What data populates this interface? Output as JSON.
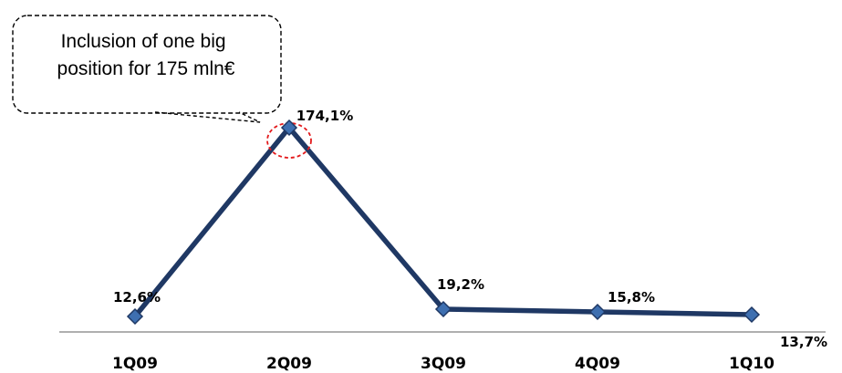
{
  "chart_data": {
    "type": "line",
    "categories": [
      "1Q09",
      "2Q09",
      "3Q09",
      "4Q09",
      "1Q10"
    ],
    "values": [
      12.6,
      174.1,
      19.2,
      15.8,
      13.7
    ],
    "data_labels": [
      "12,6%",
      "174,1%",
      "19,2%",
      "15,8%",
      "13,7%"
    ],
    "title": "",
    "xlabel": "",
    "ylabel": "",
    "y_axis_visible": false,
    "grid": false,
    "legend": "none",
    "line_color": "#1f3864",
    "marker_color": "#3e6fb0",
    "highlight_color": "#e31a1c",
    "annotation": {
      "lines": [
        "Inclusion of one big",
        "position for 175 mln€"
      ],
      "target_category": "2Q09"
    }
  }
}
